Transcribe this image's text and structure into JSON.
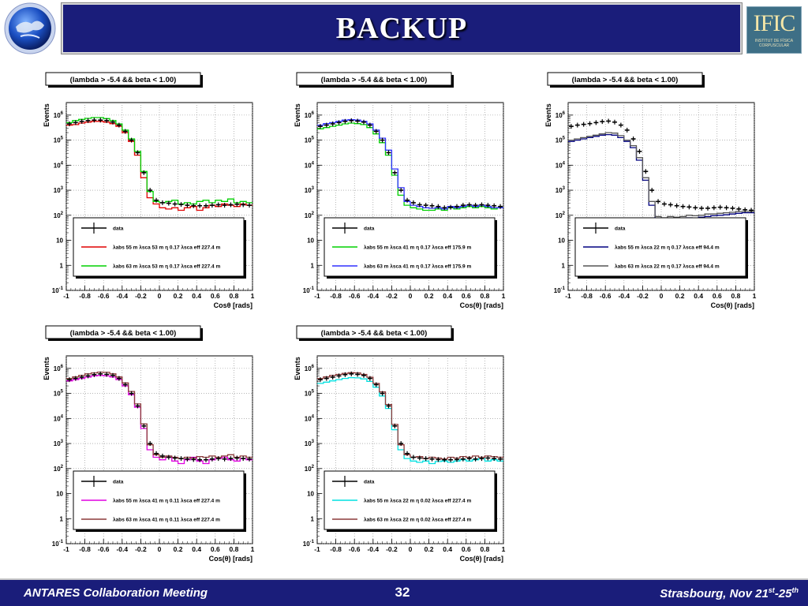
{
  "slide": {
    "title": "BACKUP",
    "footer_left": "ANTARES Collaboration Meeting",
    "page_number": "32",
    "footer_right": "Strasbourg, Nov 21",
    "footer_right_sup1": "st",
    "footer_right_mid": "-25",
    "footer_right_sup2": "th",
    "logo_right_text": "IFIC",
    "logo_right_sub1": "INSTITUT DE FÍSICA",
    "logo_right_sub2": "CORPUSCULAR"
  },
  "colors": {
    "title_bg": "#1a1d7a",
    "data": "#000000",
    "red": "#e00000",
    "green": "#00d000",
    "blue": "#3030ff",
    "navy": "#000080",
    "gray": "#555555",
    "magenta": "#e000e0",
    "brown": "#8b3a3a",
    "cyan": "#00e0e0"
  },
  "chart_data": [
    {
      "type": "line",
      "title": "(lambda > -5.4 && beta < 1.00)",
      "xlabel": "Cosθ [rads]",
      "ylabel": "Events",
      "xlim": [
        -1,
        1
      ],
      "ylim_log10": [
        -1,
        6.5
      ],
      "log_y": true,
      "grid": true,
      "x_ticks": [
        "-1",
        "-0.8",
        "-0.6",
        "-0.4",
        "-0.2",
        "0",
        "0.2",
        "0.4",
        "0.6",
        "0.8",
        "1"
      ],
      "y_ticks": [
        "10-1",
        "1",
        "10",
        "102",
        "103",
        "104",
        "105",
        "106"
      ],
      "legend": [
        {
          "label": "data",
          "color": "#000000"
        },
        {
          "label": "λabs 55 m λsca 53 m η 0.17 λsca eff 227.4 m",
          "color": "#e00000"
        },
        {
          "label": "λabs 63 m λsca 53 m η 0.17 λsca eff 227.4 m",
          "color": "#00d000"
        }
      ],
      "series": [
        {
          "name": "data",
          "color": "#000000",
          "log10_values": [
            5.65,
            5.7,
            5.75,
            5.78,
            5.8,
            5.8,
            5.78,
            5.72,
            5.6,
            5.35,
            5.0,
            4.5,
            3.7,
            3.0,
            2.6,
            2.5,
            2.48,
            2.45,
            2.43,
            2.4,
            2.38,
            2.38,
            2.38,
            2.4,
            2.42,
            2.4,
            2.42,
            2.44,
            2.42,
            2.4
          ]
        },
        {
          "name": "red",
          "color": "#e00000",
          "log10_values": [
            5.6,
            5.62,
            5.68,
            5.72,
            5.75,
            5.75,
            5.72,
            5.66,
            5.55,
            5.3,
            4.95,
            4.4,
            3.5,
            2.7,
            2.45,
            2.3,
            2.25,
            2.3,
            2.2,
            2.3,
            2.35,
            2.2,
            2.3,
            2.4,
            2.35,
            2.45,
            2.4,
            2.35,
            2.45,
            2.4
          ]
        },
        {
          "name": "green",
          "color": "#00d000",
          "log10_values": [
            5.7,
            5.78,
            5.83,
            5.87,
            5.9,
            5.9,
            5.86,
            5.78,
            5.65,
            5.4,
            5.05,
            4.55,
            3.75,
            2.95,
            2.55,
            2.5,
            2.55,
            2.6,
            2.45,
            2.5,
            2.45,
            2.55,
            2.6,
            2.5,
            2.6,
            2.55,
            2.65,
            2.5,
            2.55,
            2.5
          ]
        }
      ]
    },
    {
      "type": "line",
      "title": "(lambda > -5.4 && beta < 1.00)",
      "xlabel": "Cos(θ) [rads]",
      "ylabel": "Events",
      "xlim": [
        -1,
        1
      ],
      "ylim_log10": [
        -1,
        6.5
      ],
      "log_y": true,
      "grid": true,
      "x_ticks": [
        "-1",
        "-0.8",
        "-0.6",
        "-0.4",
        "-0.2",
        "0",
        "0.2",
        "0.4",
        "0.6",
        "0.8",
        "1"
      ],
      "y_ticks": [
        "10-1",
        "1",
        "10",
        "102",
        "103",
        "104",
        "105",
        "106"
      ],
      "legend": [
        {
          "label": "data",
          "color": "#000000"
        },
        {
          "label": "λabs 55 m λsca 41 m η 0.17 λsca eff 175.9 m",
          "color": "#00d000"
        },
        {
          "label": "λabs 63 m λsca 41 m η 0.17 λsca eff 175.9 m",
          "color": "#3030ff"
        }
      ],
      "series": [
        {
          "name": "data",
          "color": "#000000",
          "log10_values": [
            5.55,
            5.6,
            5.65,
            5.7,
            5.75,
            5.78,
            5.76,
            5.72,
            5.6,
            5.35,
            5.0,
            4.5,
            3.7,
            3.0,
            2.6,
            2.5,
            2.42,
            2.4,
            2.38,
            2.35,
            2.3,
            2.32,
            2.35,
            2.4,
            2.42,
            2.4,
            2.42,
            2.4,
            2.38,
            2.35
          ]
        },
        {
          "name": "green",
          "color": "#00d000",
          "log10_values": [
            5.45,
            5.5,
            5.55,
            5.6,
            5.65,
            5.68,
            5.66,
            5.62,
            5.5,
            5.25,
            4.9,
            4.4,
            3.6,
            2.8,
            2.4,
            2.3,
            2.25,
            2.2,
            2.2,
            2.25,
            2.2,
            2.3,
            2.25,
            2.3,
            2.35,
            2.3,
            2.35,
            2.3,
            2.25,
            2.3
          ]
        },
        {
          "name": "blue",
          "color": "#3030ff",
          "log10_values": [
            5.6,
            5.66,
            5.7,
            5.75,
            5.8,
            5.82,
            5.8,
            5.75,
            5.65,
            5.4,
            5.08,
            4.6,
            3.85,
            3.1,
            2.55,
            2.4,
            2.35,
            2.3,
            2.28,
            2.3,
            2.25,
            2.35,
            2.3,
            2.35,
            2.4,
            2.35,
            2.4,
            2.35,
            2.3,
            2.3
          ]
        }
      ]
    },
    {
      "type": "line",
      "title": "(lambda > -5.4 && beta < 1.00)",
      "xlabel": "Cos(θ) [rads]",
      "ylabel": "Events",
      "xlim": [
        -1,
        1
      ],
      "ylim_log10": [
        -1,
        6.5
      ],
      "log_y": true,
      "grid": true,
      "x_ticks": [
        "-1",
        "-0.8",
        "-0.6",
        "-0.4",
        "-0.2",
        "0",
        "0.2",
        "0.4",
        "0.6",
        "0.8",
        "1"
      ],
      "y_ticks": [
        "10-1",
        "1",
        "10",
        "102",
        "103",
        "104",
        "105",
        "106"
      ],
      "legend": [
        {
          "label": "data",
          "color": "#000000"
        },
        {
          "label": "λabs 55 m λsca 22 m η 0.17 λsca eff 94.4 m",
          "color": "#000080"
        },
        {
          "label": "λabs 63 m λsca 22 m η 0.17 λsca eff 94.4 m",
          "color": "#555555"
        }
      ],
      "series": [
        {
          "name": "data",
          "color": "#000000",
          "log10_values": [
            5.55,
            5.6,
            5.63,
            5.66,
            5.7,
            5.74,
            5.76,
            5.72,
            5.6,
            5.4,
            5.05,
            4.55,
            3.75,
            3.0,
            2.55,
            2.45,
            2.42,
            2.38,
            2.35,
            2.33,
            2.3,
            2.28,
            2.28,
            2.3,
            2.32,
            2.3,
            2.28,
            2.25,
            2.22,
            2.2
          ]
        },
        {
          "name": "navy",
          "color": "#000080",
          "log10_values": [
            4.95,
            5.0,
            5.05,
            5.1,
            5.15,
            5.2,
            5.22,
            5.2,
            5.1,
            4.95,
            4.7,
            4.2,
            3.4,
            2.4,
            1.85,
            1.8,
            1.85,
            1.8,
            1.85,
            1.9,
            1.88,
            1.92,
            1.95,
            1.98,
            2.0,
            2.02,
            2.05,
            2.08,
            2.1,
            2.1
          ]
        },
        {
          "name": "gray",
          "color": "#555555",
          "log10_values": [
            5.0,
            5.05,
            5.1,
            5.15,
            5.2,
            5.25,
            5.3,
            5.28,
            5.18,
            5.0,
            4.78,
            4.3,
            3.5,
            2.55,
            1.95,
            1.9,
            1.95,
            1.92,
            1.95,
            2.0,
            1.98,
            2.0,
            2.05,
            2.05,
            2.08,
            2.1,
            2.12,
            2.15,
            2.15,
            2.15
          ]
        }
      ]
    },
    {
      "type": "line",
      "title": "(lambda > -5.4 && beta < 1.00)",
      "xlabel": "Cos(θ) [rads]",
      "ylabel": "Events",
      "xlim": [
        -1,
        1
      ],
      "ylim_log10": [
        -1,
        6.5
      ],
      "log_y": true,
      "grid": true,
      "x_ticks": [
        "-1",
        "-0.8",
        "-0.6",
        "-0.4",
        "-0.2",
        "0",
        "0.2",
        "0.4",
        "0.6",
        "0.8",
        "1"
      ],
      "y_ticks": [
        "10-1",
        "1",
        "10",
        "102",
        "103",
        "104",
        "105",
        "106"
      ],
      "legend": [
        {
          "label": "data",
          "color": "#000000"
        },
        {
          "label": "λabs 55 m λsca 41 m η 0.11 λsca eff 227.4 m",
          "color": "#e000e0"
        },
        {
          "label": "λabs 63 m λsca 41 m η 0.11 λsca eff 227.4 m",
          "color": "#8b3a3a"
        }
      ],
      "series": [
        {
          "name": "data",
          "color": "#000000",
          "log10_values": [
            5.55,
            5.6,
            5.65,
            5.7,
            5.75,
            5.78,
            5.76,
            5.72,
            5.6,
            5.35,
            5.0,
            4.5,
            3.7,
            3.0,
            2.6,
            2.5,
            2.45,
            2.42,
            2.4,
            2.38,
            2.36,
            2.35,
            2.35,
            2.38,
            2.4,
            2.38,
            2.4,
            2.42,
            2.4,
            2.38
          ]
        },
        {
          "name": "magenta",
          "color": "#e000e0",
          "log10_values": [
            5.5,
            5.55,
            5.6,
            5.65,
            5.7,
            5.72,
            5.7,
            5.66,
            5.55,
            5.3,
            4.95,
            4.45,
            3.6,
            2.75,
            2.45,
            2.35,
            2.45,
            2.3,
            2.2,
            2.35,
            2.45,
            2.3,
            2.2,
            2.35,
            2.4,
            2.45,
            2.35,
            2.3,
            2.4,
            2.35
          ]
        },
        {
          "name": "brown",
          "color": "#8b3a3a",
          "log10_values": [
            5.6,
            5.66,
            5.72,
            5.78,
            5.82,
            5.85,
            5.84,
            5.78,
            5.66,
            5.42,
            5.08,
            4.58,
            3.78,
            2.95,
            2.55,
            2.45,
            2.5,
            2.45,
            2.4,
            2.45,
            2.42,
            2.48,
            2.45,
            2.5,
            2.45,
            2.5,
            2.55,
            2.45,
            2.5,
            2.45
          ]
        }
      ]
    },
    {
      "type": "line",
      "title": "(lambda > -5.4 && beta < 1.00)",
      "xlabel": "Cos(θ) [rads]",
      "ylabel": "Events",
      "xlim": [
        -1,
        1
      ],
      "ylim_log10": [
        -1,
        6.5
      ],
      "log_y": true,
      "grid": true,
      "x_ticks": [
        "-1",
        "-0.8",
        "-0.6",
        "-0.4",
        "-0.2",
        "0",
        "0.2",
        "0.4",
        "0.6",
        "0.8",
        "1"
      ],
      "y_ticks": [
        "10-1",
        "1",
        "10",
        "102",
        "103",
        "104",
        "105",
        "106"
      ],
      "legend": [
        {
          "label": "data",
          "color": "#000000"
        },
        {
          "label": "λabs 55 m λsca 22 m η 0.02 λsca eff 227.4 m",
          "color": "#00e0e0"
        },
        {
          "label": "λabs 63 m λsca 22 m η 0.02 λsca eff 227.4 m",
          "color": "#8b3a3a"
        }
      ],
      "series": [
        {
          "name": "data",
          "color": "#000000",
          "log10_values": [
            5.55,
            5.6,
            5.65,
            5.7,
            5.75,
            5.78,
            5.76,
            5.72,
            5.6,
            5.35,
            5.0,
            4.5,
            3.7,
            3.0,
            2.6,
            2.45,
            2.42,
            2.4,
            2.38,
            2.36,
            2.35,
            2.35,
            2.36,
            2.38,
            2.4,
            2.38,
            2.4,
            2.42,
            2.4,
            2.38
          ]
        },
        {
          "name": "cyan",
          "color": "#00e0e0",
          "log10_values": [
            5.4,
            5.45,
            5.5,
            5.55,
            5.6,
            5.63,
            5.62,
            5.58,
            5.48,
            5.25,
            4.9,
            4.4,
            3.55,
            2.75,
            2.4,
            2.3,
            2.25,
            2.3,
            2.2,
            2.28,
            2.3,
            2.25,
            2.3,
            2.35,
            2.3,
            2.35,
            2.4,
            2.3,
            2.35,
            2.3
          ]
        },
        {
          "name": "brown",
          "color": "#8b3a3a",
          "log10_values": [
            5.6,
            5.66,
            5.72,
            5.76,
            5.8,
            5.83,
            5.82,
            5.76,
            5.65,
            5.4,
            5.06,
            4.56,
            3.76,
            2.95,
            2.55,
            2.45,
            2.48,
            2.4,
            2.45,
            2.42,
            2.38,
            2.45,
            2.42,
            2.48,
            2.45,
            2.5,
            2.45,
            2.5,
            2.48,
            2.45
          ]
        }
      ]
    }
  ]
}
